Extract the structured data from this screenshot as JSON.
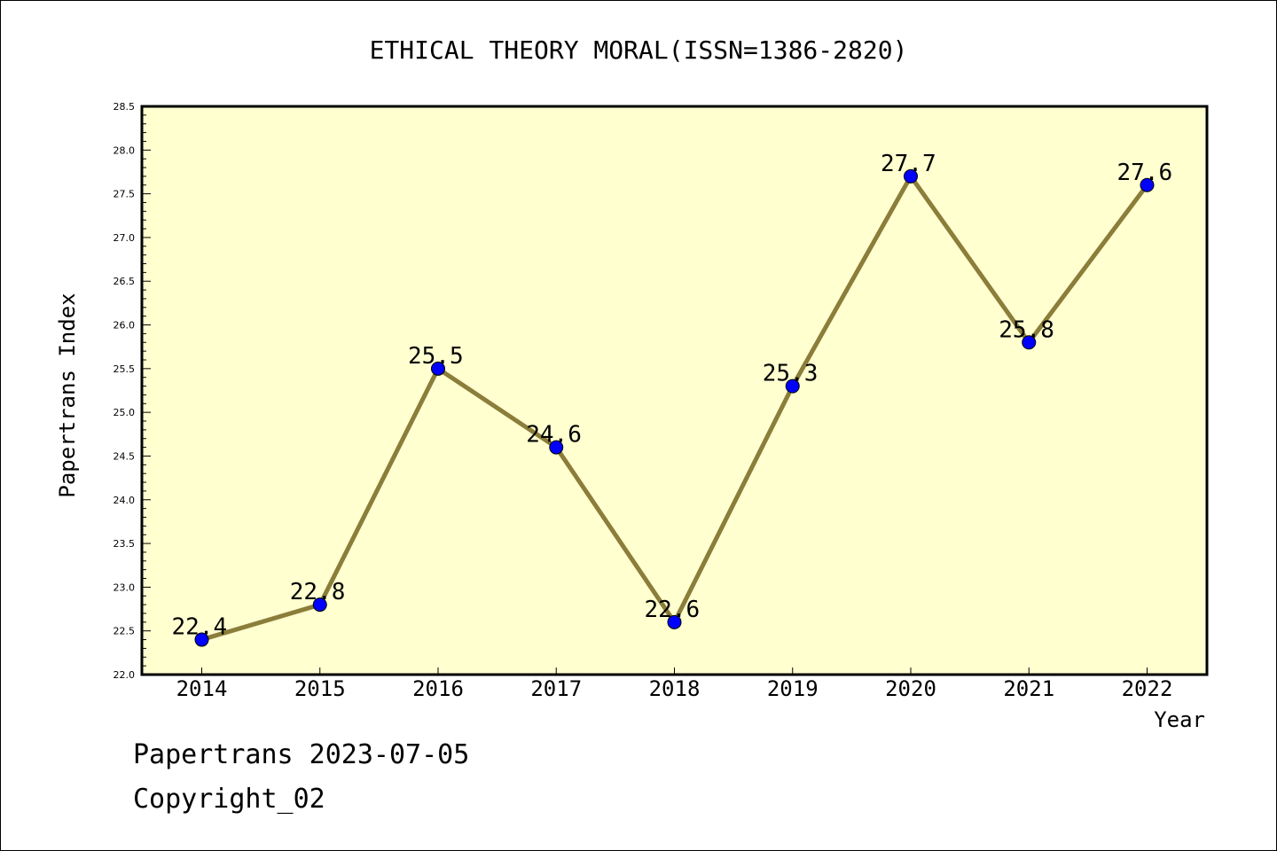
{
  "chart_data": {
    "type": "line",
    "title": "ETHICAL THEORY MORAL(ISSN=1386-2820)",
    "xlabel": "Year",
    "ylabel": "Papertrans Index",
    "categories": [
      "2014",
      "2015",
      "2016",
      "2017",
      "2018",
      "2019",
      "2020",
      "2021",
      "2022"
    ],
    "series": [
      {
        "values": [
          22.4,
          22.8,
          25.5,
          24.6,
          22.6,
          25.3,
          27.7,
          25.8,
          27.6
        ]
      }
    ],
    "data_labels": [
      "22.4",
      "22.8",
      "25.5",
      "24.6",
      "22.6",
      "25.3",
      "27.7",
      "25.8",
      "27.6"
    ],
    "ylim": [
      22.0,
      28.5
    ],
    "y_ticks": [
      "22.0",
      "22.5",
      "23.0",
      "23.5",
      "24.0",
      "24.5",
      "25.0",
      "25.5",
      "26.0",
      "26.5",
      "27.0",
      "27.5",
      "28.0",
      "28.5"
    ],
    "grid": false,
    "legend": "none",
    "colors": {
      "plot_background": "#ffffd0",
      "line": "#8b7d3a",
      "marker": "#0000ff"
    }
  },
  "footer": {
    "line1": "Papertrans 2023-07-05",
    "line2": "Copyright_02"
  }
}
